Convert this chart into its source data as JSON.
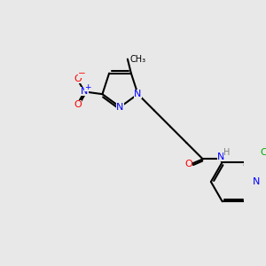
{
  "background_color": "#e8e8e8",
  "bond_color": "#000000",
  "bond_width": 1.5,
  "atom_colors": {
    "C": "#000000",
    "N": "#0000ff",
    "O": "#ff0000",
    "Cl": "#00aa00",
    "H": "#808080"
  },
  "font_size": 7.5
}
